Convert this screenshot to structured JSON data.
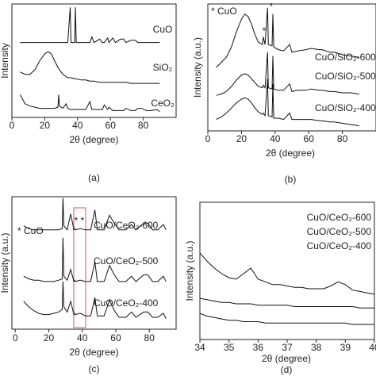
{
  "chart_data": [
    {
      "type": "line",
      "panel_label": "(a)",
      "xlabel": "2θ (degree)",
      "ylabel": "Intensity",
      "xlim": [
        0,
        100
      ],
      "xticks": [
        0,
        20,
        40,
        60,
        80
      ],
      "ylim": [
        0,
        100
      ],
      "x": [
        5,
        8,
        11,
        14,
        17,
        20,
        22,
        24,
        26,
        28,
        28.5,
        29,
        31,
        33,
        34,
        35.5,
        36,
        38.2,
        38.7,
        39.2,
        42,
        45,
        47.5,
        48.7,
        50,
        53.5,
        55,
        56.3,
        58.3,
        59.1,
        61.5,
        63,
        66.2,
        68,
        69.4,
        72.4,
        75.2,
        76.7,
        79.1,
        82,
        85,
        88.4,
        90
      ],
      "series": [
        {
          "name": "CuO",
          "color": "#111111",
          "values": [
            66,
            66,
            66,
            66,
            66,
            66,
            66,
            66,
            66,
            66,
            66,
            66,
            66,
            66,
            66,
            97,
            66,
            66,
            97,
            66,
            66,
            66,
            66,
            71,
            66,
            69,
            66,
            66,
            70,
            66,
            70,
            66,
            69,
            69,
            66,
            68,
            68,
            66,
            66,
            66,
            66,
            66,
            66
          ]
        },
        {
          "name": "SiO₂",
          "color": "#111111",
          "values": [
            40,
            38,
            38,
            42,
            50,
            56,
            58,
            56,
            50,
            44,
            43,
            42,
            38,
            36,
            35,
            35,
            35,
            34,
            34,
            34,
            33,
            33,
            32,
            32,
            32,
            31,
            31,
            31,
            31,
            31,
            31,
            31,
            31,
            31,
            31,
            30,
            30,
            30,
            30,
            30,
            30,
            30,
            30
          ]
        },
        {
          "name": "CeO₂",
          "color": "#111111",
          "values": [
            20,
            12,
            10,
            9,
            8,
            8,
            8,
            8,
            8,
            9,
            20,
            10,
            8,
            12,
            8,
            7,
            7,
            7,
            7,
            7,
            7,
            7,
            14,
            7,
            7,
            7,
            7,
            11,
            7,
            9,
            6,
            6,
            6,
            6,
            8,
            6,
            6,
            8,
            8,
            6,
            6,
            7,
            5
          ]
        }
      ]
    },
    {
      "type": "line",
      "panel_label": "(b)",
      "xlabel": "2θ (degree)",
      "ylabel": "Intensity (a.u.)",
      "xlim": [
        0,
        100
      ],
      "xticks": [
        0,
        20,
        40,
        60,
        80
      ],
      "ylim": [
        0,
        100
      ],
      "annotations": [
        "* CuO",
        "*",
        "*"
      ],
      "x": [
        5,
        8,
        11,
        14,
        17,
        20,
        22,
        24,
        26,
        28,
        30,
        32.5,
        33,
        34,
        35.5,
        36,
        38.2,
        38.7,
        39.2,
        42,
        45,
        48.7,
        50,
        53.5,
        58.3,
        61.5,
        66.2,
        68,
        72.4,
        75.2,
        80,
        85,
        90
      ],
      "series": [
        {
          "name": "CuO/SiO₂-600",
          "color": "#111111",
          "values": [
            50,
            54,
            58,
            66,
            78,
            88,
            92,
            90,
            84,
            76,
            70,
            68,
            74,
            68,
            97,
            68,
            67,
            92,
            66,
            64,
            63,
            68,
            62,
            63,
            64,
            65,
            64,
            64,
            62,
            62,
            60,
            59,
            58
          ]
        },
        {
          "name": "CuO/SiO₂-500",
          "color": "#111111",
          "values": [
            28,
            29,
            31,
            35,
            40,
            44,
            45,
            44,
            41,
            38,
            35,
            34,
            36,
            34,
            62,
            34,
            33,
            59,
            33,
            32,
            32,
            37,
            31,
            32,
            32,
            33,
            32,
            32,
            31,
            31,
            30,
            30,
            29
          ]
        },
        {
          "name": "CuO/SiO₂-400",
          "color": "#111111",
          "values": [
            9,
            11,
            14,
            18,
            22,
            25,
            26,
            25,
            22,
            18,
            15,
            13,
            14,
            12,
            41,
            12,
            11,
            37,
            10,
            10,
            9,
            14,
            9,
            9,
            9,
            9,
            8,
            8,
            7,
            7,
            6,
            5,
            4
          ]
        }
      ]
    },
    {
      "type": "line",
      "panel_label": "(c)",
      "xlabel": "2θ (degree)",
      "ylabel": "Intensity (a.u.)",
      "xlim": [
        -2,
        96
      ],
      "xticks": [
        0,
        20,
        40,
        60,
        80
      ],
      "ylim": [
        0,
        100
      ],
      "annotations": [
        "* CuO",
        "* *"
      ],
      "x": [
        5,
        8,
        11,
        14,
        17,
        20,
        23,
        26,
        28,
        28.5,
        29,
        31,
        33.1,
        35,
        35.5,
        36,
        38.7,
        42,
        45,
        47.5,
        49,
        53,
        56.3,
        59.1,
        62,
        66,
        69.4,
        72,
        76.7,
        79.1,
        82,
        85,
        88.4,
        90
      ],
      "series": [
        {
          "name": "CuO/CeO₂-600",
          "color": "#111111",
          "values": [
            78,
            76,
            75,
            75,
            75,
            75,
            75,
            75,
            76,
            99,
            78,
            75,
            87,
            75,
            76,
            75,
            76,
            75,
            75,
            90,
            75,
            75,
            86,
            80,
            75,
            75,
            79,
            75,
            80,
            80,
            75,
            75,
            79,
            75
          ]
        },
        {
          "name": "CuO/CeO₂-500",
          "color": "#111111",
          "values": [
            40,
            38,
            37,
            37,
            36,
            36,
            36,
            37,
            38,
            69,
            40,
            37,
            45,
            36,
            37,
            36,
            37,
            36,
            36,
            51,
            36,
            36,
            48,
            41,
            36,
            36,
            40,
            36,
            41,
            41,
            36,
            36,
            40,
            36
          ]
        },
        {
          "name": "CuO/CeO₂-400",
          "color": "#111111",
          "values": [
            21,
            17,
            14,
            12,
            11,
            11,
            12,
            13,
            15,
            36,
            17,
            13,
            21,
            11,
            12,
            11,
            12,
            10,
            10,
            24,
            10,
            10,
            22,
            14,
            9,
            9,
            13,
            9,
            13,
            13,
            9,
            9,
            12,
            8
          ]
        }
      ]
    },
    {
      "type": "line",
      "panel_label": "(d)",
      "xlabel": "2θ (degree)",
      "ylabel": "Intensity (a.u.)",
      "xlim": [
        34,
        40
      ],
      "xticks": [
        34,
        35,
        36,
        37,
        38,
        39,
        40
      ],
      "ylim": [
        0,
        100
      ],
      "x": [
        34,
        34.25,
        34.5,
        34.75,
        35,
        35.25,
        35.5,
        35.75,
        36,
        36.25,
        36.5,
        36.75,
        37,
        37.25,
        37.5,
        37.75,
        38,
        38.25,
        38.5,
        38.75,
        39,
        39.25,
        39.5,
        39.75,
        40
      ],
      "series": [
        {
          "name": "CuO/CeO₂-600",
          "color": "#111111",
          "values": [
            63,
            57,
            52,
            48,
            45,
            44,
            48,
            52,
            44,
            42,
            40,
            40,
            39,
            38,
            38,
            37,
            37,
            37,
            39,
            42,
            40,
            36,
            35,
            34,
            33
          ]
        },
        {
          "name": "CuO/CeO₂-500",
          "color": "#111111",
          "values": [
            30,
            29,
            28,
            27,
            27,
            26,
            26,
            26,
            25,
            25,
            25,
            25,
            25,
            24,
            24,
            24,
            24,
            24,
            24,
            24,
            24,
            24,
            23,
            23,
            23
          ]
        },
        {
          "name": "CuO/CeO₂-400",
          "color": "#111111",
          "values": [
            19,
            17,
            16,
            15,
            14,
            14,
            13,
            13,
            13,
            12,
            12,
            12,
            12,
            12,
            12,
            12,
            12,
            12,
            12,
            12,
            12,
            11,
            11,
            11,
            11
          ]
        }
      ]
    }
  ]
}
